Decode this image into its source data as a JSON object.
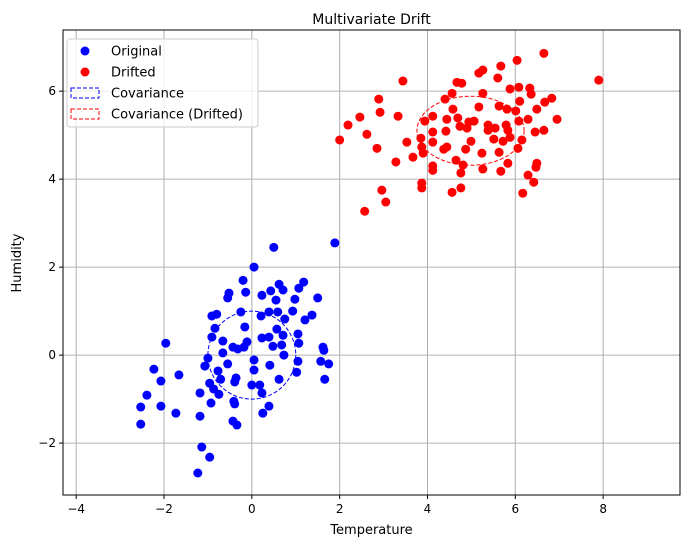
{
  "chart_data": {
    "type": "scatter",
    "title": "Multivariate Drift",
    "xlabel": "Temperature",
    "ylabel": "Humidity",
    "xlim": [
      -4.3,
      9.75
    ],
    "ylim": [
      -3.18,
      7.39
    ],
    "xticks": [
      -4,
      -2,
      0,
      2,
      4,
      6,
      8
    ],
    "yticks": [
      -2,
      0,
      2,
      4,
      6
    ],
    "grid": true,
    "legend_position": "top-left",
    "series": [
      {
        "name": "Original",
        "color": "#0000ff",
        "points": [
          [
            0.5,
            2.45
          ],
          [
            1.89,
            2.55
          ],
          [
            0.05,
            2.0
          ],
          [
            -0.2,
            1.7
          ],
          [
            -0.52,
            1.41
          ],
          [
            -0.55,
            1.3
          ],
          [
            -0.14,
            1.43
          ],
          [
            0.23,
            1.36
          ],
          [
            0.43,
            1.46
          ],
          [
            0.62,
            1.61
          ],
          [
            0.71,
            1.48
          ],
          [
            0.55,
            1.25
          ],
          [
            0.98,
            1.27
          ],
          [
            1.07,
            1.52
          ],
          [
            1.18,
            1.66
          ],
          [
            1.5,
            1.3
          ],
          [
            -0.91,
            0.89
          ],
          [
            -0.8,
            0.93
          ],
          [
            -0.25,
            0.98
          ],
          [
            0.21,
            0.89
          ],
          [
            0.39,
            0.98
          ],
          [
            0.59,
            0.98
          ],
          [
            0.93,
            1.0
          ],
          [
            0.75,
            0.82
          ],
          [
            1.21,
            0.8
          ],
          [
            1.37,
            0.91
          ],
          [
            -0.84,
            0.61
          ],
          [
            -0.16,
            0.64
          ],
          [
            -0.91,
            0.41
          ],
          [
            -0.66,
            0.32
          ],
          [
            -0.43,
            0.18
          ],
          [
            -0.32,
            0.14
          ],
          [
            -0.18,
            0.18
          ],
          [
            -0.11,
            0.3
          ],
          [
            0.23,
            0.39
          ],
          [
            0.39,
            0.41
          ],
          [
            0.57,
            0.59
          ],
          [
            0.71,
            0.45
          ],
          [
            0.48,
            0.2
          ],
          [
            0.68,
            0.23
          ],
          [
            1.05,
            0.48
          ],
          [
            1.07,
            0.27
          ],
          [
            0.73,
            0.0
          ],
          [
            1.62,
            0.18
          ],
          [
            1.64,
            0.11
          ],
          [
            -1.96,
            0.27
          ],
          [
            -1.0,
            -0.07
          ],
          [
            -0.66,
            0.05
          ],
          [
            -1.07,
            -0.25
          ],
          [
            -0.55,
            -0.2
          ],
          [
            0.05,
            -0.11
          ],
          [
            0.05,
            -0.34
          ],
          [
            0.41,
            -0.23
          ],
          [
            1.05,
            -0.14
          ],
          [
            1.02,
            -0.39
          ],
          [
            1.57,
            -0.14
          ],
          [
            1.75,
            -0.2
          ],
          [
            1.66,
            -0.55
          ],
          [
            -2.23,
            -0.32
          ],
          [
            -1.66,
            -0.45
          ],
          [
            -2.07,
            -0.59
          ],
          [
            -0.77,
            -0.36
          ],
          [
            -0.71,
            -0.55
          ],
          [
            -0.36,
            -0.52
          ],
          [
            -0.39,
            -0.61
          ],
          [
            0.62,
            -0.55
          ],
          [
            -0.96,
            -0.64
          ],
          [
            -0.87,
            -0.77
          ],
          [
            -0.75,
            -0.89
          ],
          [
            0.0,
            -0.68
          ],
          [
            0.18,
            -0.68
          ],
          [
            0.23,
            -0.86
          ],
          [
            -1.18,
            -0.86
          ],
          [
            -2.39,
            -0.91
          ],
          [
            -2.53,
            -1.18
          ],
          [
            -2.07,
            -1.16
          ],
          [
            -1.73,
            -1.32
          ],
          [
            -0.93,
            -1.09
          ],
          [
            -0.41,
            -1.05
          ],
          [
            -0.39,
            -1.11
          ],
          [
            0.39,
            -1.16
          ],
          [
            0.25,
            -1.32
          ],
          [
            -1.18,
            -1.39
          ],
          [
            -2.53,
            -1.57
          ],
          [
            -0.43,
            -1.5
          ],
          [
            -0.34,
            -1.59
          ],
          [
            -1.14,
            -2.09
          ],
          [
            -0.96,
            -2.32
          ],
          [
            -1.23,
            -2.68
          ]
        ]
      },
      {
        "name": "Drifted",
        "color": "#ff0000",
        "points": [
          [
            6.65,
            6.86
          ],
          [
            6.04,
            6.7
          ],
          [
            5.67,
            6.57
          ],
          [
            5.17,
            6.41
          ],
          [
            5.26,
            6.48
          ],
          [
            5.6,
            6.3
          ],
          [
            3.44,
            6.23
          ],
          [
            4.67,
            6.2
          ],
          [
            4.78,
            6.18
          ],
          [
            7.9,
            6.25
          ],
          [
            5.88,
            6.05
          ],
          [
            6.08,
            6.09
          ],
          [
            6.33,
            6.07
          ],
          [
            6.36,
            5.93
          ],
          [
            4.56,
            5.95
          ],
          [
            5.26,
            5.95
          ],
          [
            4.4,
            5.82
          ],
          [
            2.89,
            5.82
          ],
          [
            6.1,
            5.77
          ],
          [
            6.67,
            5.75
          ],
          [
            6.83,
            5.84
          ],
          [
            2.92,
            5.52
          ],
          [
            3.33,
            5.43
          ],
          [
            2.46,
            5.41
          ],
          [
            4.58,
            5.59
          ],
          [
            5.17,
            5.64
          ],
          [
            5.63,
            5.66
          ],
          [
            5.81,
            5.59
          ],
          [
            6.01,
            5.55
          ],
          [
            6.49,
            5.59
          ],
          [
            6.95,
            5.36
          ],
          [
            6.29,
            5.36
          ],
          [
            6.08,
            5.32
          ],
          [
            2.19,
            5.23
          ],
          [
            4.12,
            5.43
          ],
          [
            3.94,
            5.32
          ],
          [
            4.44,
            5.36
          ],
          [
            4.69,
            5.39
          ],
          [
            4.94,
            5.3
          ],
          [
            5.06,
            5.32
          ],
          [
            4.74,
            5.2
          ],
          [
            4.9,
            5.16
          ],
          [
            5.38,
            5.23
          ],
          [
            5.54,
            5.16
          ],
          [
            5.38,
            5.11
          ],
          [
            5.79,
            5.23
          ],
          [
            5.83,
            5.11
          ],
          [
            4.12,
            5.07
          ],
          [
            4.42,
            5.09
          ],
          [
            6.45,
            5.07
          ],
          [
            6.65,
            5.11
          ],
          [
            2.62,
            5.02
          ],
          [
            2.0,
            4.89
          ],
          [
            3.85,
            4.93
          ],
          [
            4.12,
            4.84
          ],
          [
            5.51,
            4.91
          ],
          [
            5.72,
            4.86
          ],
          [
            5.88,
            4.95
          ],
          [
            6.15,
            4.89
          ],
          [
            3.53,
            4.84
          ],
          [
            4.99,
            4.86
          ],
          [
            2.85,
            4.7
          ],
          [
            3.87,
            4.73
          ],
          [
            3.9,
            4.59
          ],
          [
            4.37,
            4.68
          ],
          [
            4.44,
            4.73
          ],
          [
            4.87,
            4.68
          ],
          [
            5.24,
            4.59
          ],
          [
            5.63,
            4.61
          ],
          [
            6.06,
            4.7
          ],
          [
            3.67,
            4.5
          ],
          [
            3.28,
            4.39
          ],
          [
            4.65,
            4.43
          ],
          [
            4.81,
            4.32
          ],
          [
            5.83,
            4.36
          ],
          [
            6.49,
            4.36
          ],
          [
            6.47,
            4.27
          ],
          [
            4.12,
            4.3
          ],
          [
            4.12,
            4.2
          ],
          [
            5.26,
            4.23
          ],
          [
            5.67,
            4.18
          ],
          [
            4.76,
            4.14
          ],
          [
            6.29,
            4.09
          ],
          [
            6.42,
            3.93
          ],
          [
            3.87,
            3.91
          ],
          [
            3.87,
            3.8
          ],
          [
            4.76,
            3.8
          ],
          [
            4.56,
            3.7
          ],
          [
            6.17,
            3.68
          ],
          [
            2.96,
            3.75
          ],
          [
            3.05,
            3.48
          ],
          [
            2.57,
            3.27
          ]
        ]
      }
    ],
    "ellipses": [
      {
        "name": "Covariance",
        "color": "#0000ff",
        "center": [
          0.0,
          0.0
        ],
        "width": 2.0,
        "height": 2.0
      },
      {
        "name": "Covariance (Drifted)",
        "color": "#ff0000",
        "center": [
          4.98,
          5.1
        ],
        "width": 2.44,
        "height": 1.57
      }
    ]
  }
}
